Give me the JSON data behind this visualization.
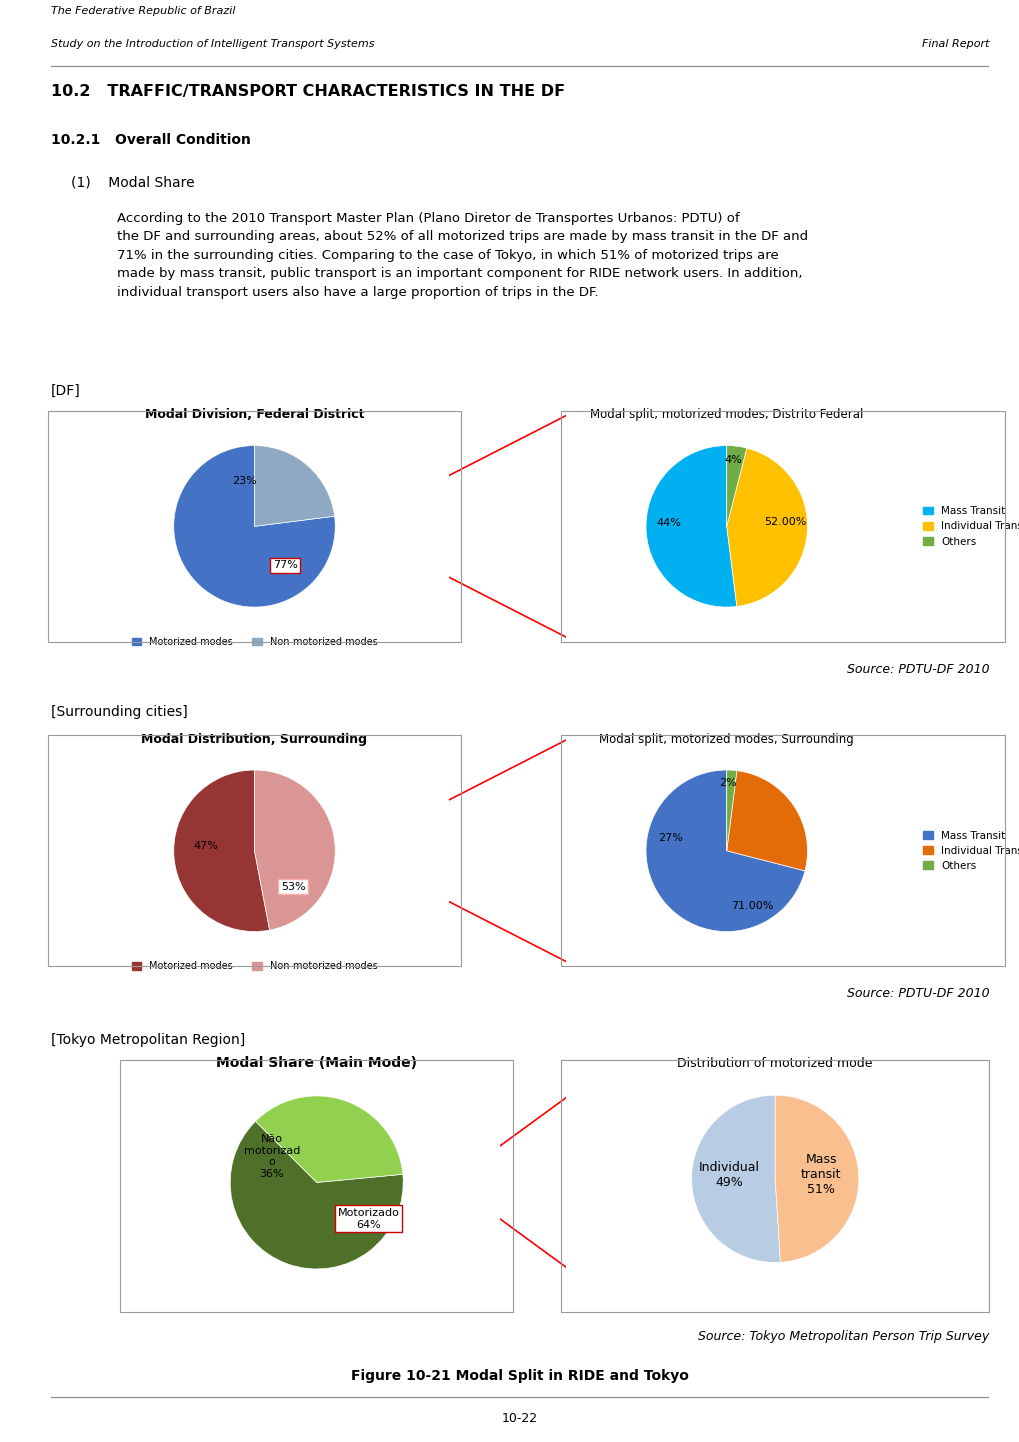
{
  "header_line1": "The Federative Republic of Brazil",
  "header_line2": "Study on the Introduction of Intelligent Transport Systems",
  "header_right": "Final Report",
  "section_title": "10.2   TRAFFIC/TRANSPORT CHARACTERISTICS IN THE DF",
  "subsection_title": "10.2.1   Overall Condition",
  "subsection2": "(1)    Modal Share",
  "body_text": "According to the 2010 Transport Master Plan (Plano Diretor de Transportes Urbanos: PDTU) of\nthe DF and surrounding areas, about 52% of all motorized trips are made by mass transit in the DF and\n71% in the surrounding cities. Comparing to the case of Tokyo, in which 51% of motorized trips are\nmade by mass transit, public transport is an important component for RIDE network users. In addition,\nindividual transport users also have a large proportion of trips in the DF.",
  "df_label": "[DF]",
  "surrounding_label": "[Surrounding cities]",
  "tokyo_label": "[Tokyo Metropolitan Region]",
  "source1": "Source: PDTU-DF 2010",
  "source2": "Source: PDTU-DF 2010",
  "source3": "Source: Tokyo Metropolitan Person Trip Survey",
  "figure_caption": "Figure 10-21 Modal Split in RIDE and Tokyo",
  "page_number": "10-22",
  "chart1_title": "Modal Division, Federal District",
  "chart1_values": [
    77,
    23
  ],
  "chart1_labels": [
    "77%",
    "23%"
  ],
  "chart1_colors": [
    "#4472C4",
    "#8EA9C1"
  ],
  "chart1_legend": [
    "Motorized modes",
    "Non-motorized modes"
  ],
  "chart2_title": "Modal split, motorized modes, Distrito Federal",
  "chart2_values": [
    52,
    44,
    4
  ],
  "chart2_labels": [
    "52.00%",
    "44%",
    "4%"
  ],
  "chart2_colors": [
    "#00B0F0",
    "#FFC000",
    "#70AD47"
  ],
  "chart2_legend": [
    "Mass Transit",
    "Individual Transit",
    "Others"
  ],
  "chart3_title": "Modal Distribution, Surrounding",
  "chart3_values": [
    53,
    47
  ],
  "chart3_labels": [
    "53%",
    "47%"
  ],
  "chart3_colors": [
    "#963634",
    "#D99694"
  ],
  "chart3_legend": [
    "Motorized modes",
    "Non-motorized modes"
  ],
  "chart4_title": "Modal split, motorized modes, Surrounding",
  "chart4_values": [
    71,
    27,
    2
  ],
  "chart4_labels": [
    "71.00%",
    "27%",
    "2%"
  ],
  "chart4_colors": [
    "#4472C4",
    "#E36C09",
    "#70AD47"
  ],
  "chart4_legend": [
    "Mass Transit",
    "Individual Transit",
    "Others"
  ],
  "chart5_title": "Modal Share (Main Mode)",
  "chart5_values": [
    64,
    36
  ],
  "chart5_colors": [
    "#4E7028",
    "#92D050"
  ],
  "chart6_title": "Distribution of motorized mode",
  "chart6_values": [
    51,
    49
  ],
  "chart6_colors": [
    "#B8CCE4",
    "#FABF8F"
  ]
}
